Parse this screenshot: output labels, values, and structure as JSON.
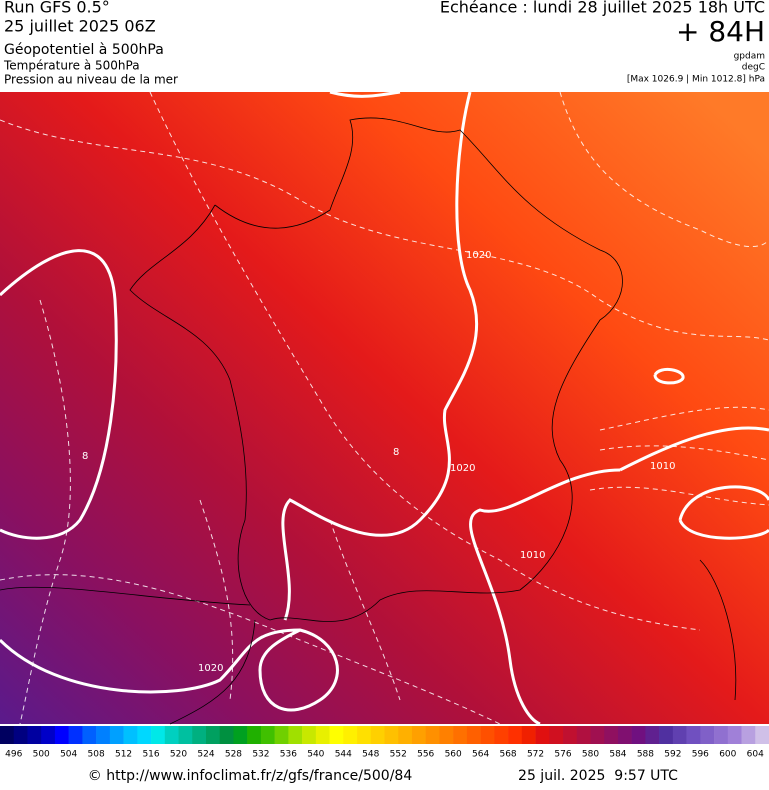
{
  "header": {
    "run": "Run GFS 0.5°",
    "run_date": "25 juillet 2025 06Z",
    "field": "Géopotentiel à 500hPa",
    "field2": "Température à 500hPa",
    "field3": "Pression au niveau de la mer",
    "echeance": "Echéance : lundi 28 juillet 2025 18h UTC",
    "lead": "+ 84H",
    "unit1": "gpdam",
    "unit2": "degC",
    "minmax": "[Max 1026.9 | Min 1012.8] hPa"
  },
  "contour_labels": [
    "1020",
    "1010",
    "1010",
    "1020",
    "1020",
    "8",
    "8"
  ],
  "colorbar": {
    "ticks": [
      496,
      500,
      504,
      508,
      512,
      516,
      520,
      524,
      528,
      532,
      536,
      540,
      544,
      548,
      552,
      556,
      560,
      564,
      568,
      572,
      576,
      580,
      584,
      588,
      592,
      596,
      600,
      604
    ],
    "colors": [
      "#000060",
      "#000080",
      "#0000a0",
      "#0000c8",
      "#0000ff",
      "#0030ff",
      "#0060ff",
      "#0080ff",
      "#00a0ff",
      "#00c0ff",
      "#00d8ff",
      "#00e8e8",
      "#00d0c0",
      "#00c0a0",
      "#00b080",
      "#00a060",
      "#009040",
      "#00a020",
      "#20b000",
      "#40c000",
      "#70d000",
      "#a0e000",
      "#c8e800",
      "#e8f000",
      "#ffff00",
      "#fff000",
      "#ffe000",
      "#ffd000",
      "#ffc000",
      "#ffb000",
      "#ffa000",
      "#ff9000",
      "#ff8000",
      "#ff7000",
      "#ff6000",
      "#ff5000",
      "#ff4000",
      "#ff3000",
      "#f02000",
      "#e01010",
      "#d01020",
      "#c01030",
      "#b01040",
      "#a01050",
      "#901060",
      "#801070",
      "#701080",
      "#602090",
      "#5030a0",
      "#6040b0",
      "#7050c0",
      "#8060c8",
      "#9070d0",
      "#a080d8",
      "#b8a0e0",
      "#d0c0e8"
    ]
  },
  "footer": {
    "url": "© http://www.infoclimat.fr/z/gfs/france/500/84",
    "stamp": "25 juil. 2025  9:57 UTC"
  }
}
